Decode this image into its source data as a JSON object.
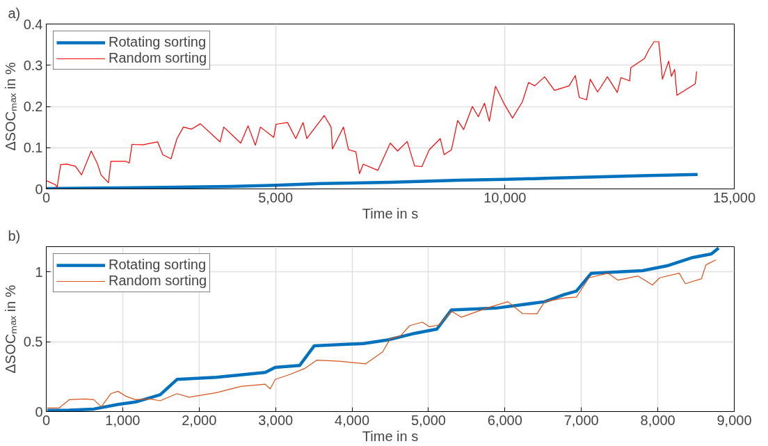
{
  "chart_data": [
    {
      "type": "line",
      "title": "a)",
      "xlabel": "Time in s",
      "ylabel": "ΔSOCₘₐₓ in %",
      "xlim": [
        0,
        15000
      ],
      "ylim": [
        0,
        0.4
      ],
      "xticks": [
        0,
        {
          "value": 5000,
          "label": "5,000"
        },
        {
          "value": 10000,
          "label": "10,000"
        },
        {
          "value": 15000,
          "label": "15,000"
        }
      ],
      "yticks": [
        0,
        0.1,
        0.2,
        0.3,
        0.4
      ],
      "grid": true,
      "legend": "top left",
      "series": [
        {
          "name": "Rotating sorting",
          "color": "#0072bd",
          "x": [
            0,
            2000,
            4000,
            5000,
            6000,
            7500,
            9000,
            10000,
            11000,
            12000,
            13000,
            14200
          ],
          "values": [
            0.001,
            0.003,
            0.006,
            0.009,
            0.013,
            0.016,
            0.021,
            0.023,
            0.026,
            0.029,
            0.032,
            0.035
          ]
        },
        {
          "name": "Random sorting",
          "color": "#ff0000",
          "x": [
            0,
            200,
            235,
            315,
            450,
            635,
            770,
            980,
            1115,
            1195,
            1355,
            1410,
            1730,
            1810,
            1870,
            2105,
            2430,
            2540,
            2720,
            2850,
            2990,
            3170,
            3360,
            3790,
            3870,
            4240,
            4400,
            4560,
            4670,
            4960,
            5010,
            5260,
            5440,
            5600,
            5680,
            6060,
            6210,
            6240,
            6480,
            6590,
            6750,
            6830,
            6910,
            7230,
            7500,
            7660,
            7870,
            8030,
            8190,
            8350,
            8590,
            8675,
            8835,
            8970,
            9100,
            9290,
            9420,
            9555,
            9660,
            9795,
            9980,
            10165,
            10380,
            10515,
            10650,
            10865,
            11080,
            11400,
            11535,
            11620,
            11780,
            11860,
            12020,
            12235,
            12450,
            12530,
            12720,
            12745,
            13040,
            13140,
            13250,
            13355,
            13435,
            13570,
            13630,
            13700,
            13750,
            13990,
            14150,
            14180
          ],
          "values": [
            0.02,
            0.01,
            0.003,
            0.059,
            0.06,
            0.055,
            0.034,
            0.092,
            0.061,
            0.034,
            0.015,
            0.067,
            0.067,
            0.063,
            0.108,
            0.107,
            0.114,
            0.083,
            0.073,
            0.122,
            0.15,
            0.145,
            0.158,
            0.114,
            0.15,
            0.111,
            0.153,
            0.106,
            0.15,
            0.125,
            0.157,
            0.161,
            0.122,
            0.161,
            0.122,
            0.178,
            0.15,
            0.097,
            0.15,
            0.095,
            0.09,
            0.037,
            0.06,
            0.045,
            0.111,
            0.092,
            0.115,
            0.056,
            0.054,
            0.095,
            0.122,
            0.083,
            0.095,
            0.166,
            0.144,
            0.2,
            0.175,
            0.208,
            0.164,
            0.249,
            0.207,
            0.172,
            0.211,
            0.258,
            0.25,
            0.272,
            0.239,
            0.25,
            0.275,
            0.222,
            0.216,
            0.266,
            0.235,
            0.272,
            0.234,
            0.27,
            0.262,
            0.294,
            0.316,
            0.338,
            0.357,
            0.357,
            0.266,
            0.31,
            0.273,
            0.29,
            0.227,
            0.244,
            0.255,
            0.285
          ]
        }
      ]
    },
    {
      "type": "line",
      "title": "b)",
      "xlabel": "Time in s",
      "ylabel": "ΔSOCₘₐₓ in %",
      "xlim": [
        0,
        9000
      ],
      "ylim": [
        0,
        1.18
      ],
      "xticks": [
        0,
        {
          "value": 1000,
          "label": "1,000"
        },
        {
          "value": 2000,
          "label": "2,000"
        },
        {
          "value": 3000,
          "label": "3,000"
        },
        {
          "value": 4000,
          "label": "4,000"
        },
        {
          "value": 5000,
          "label": "5,000"
        },
        {
          "value": 6000,
          "label": "6,000"
        },
        {
          "value": 7000,
          "label": "7,000"
        },
        {
          "value": 8000,
          "label": "8,000"
        },
        {
          "value": 9000,
          "label": "9,000"
        }
      ],
      "yticks": [
        0,
        0.5,
        1
      ],
      "grid": true,
      "legend": "top left",
      "series": [
        {
          "name": "Rotating sorting",
          "color": "#0072bd",
          "x": [
            13,
            300,
            620,
            940,
            1165,
            1490,
            1710,
            2225,
            2865,
            2995,
            3315,
            3505,
            4150,
            4470,
            4790,
            5110,
            5300,
            5880,
            6520,
            6775,
            6935,
            7130,
            7800,
            8120,
            8440,
            8700,
            8795
          ],
          "values": [
            0.009,
            0.01,
            0.018,
            0.051,
            0.068,
            0.12,
            0.23,
            0.245,
            0.28,
            0.316,
            0.33,
            0.47,
            0.487,
            0.513,
            0.556,
            0.59,
            0.727,
            0.74,
            0.786,
            0.837,
            0.862,
            0.99,
            1.008,
            1.043,
            1.1,
            1.128,
            1.17
          ]
        },
        {
          "name": "Random sorting",
          "color": "#d95319",
          "x": [
            13,
            170,
            300,
            510,
            620,
            720,
            845,
            940,
            1040,
            1165,
            1360,
            1490,
            1710,
            1870,
            2225,
            2545,
            2865,
            2930,
            2995,
            3185,
            3380,
            3540,
            3830,
            4180,
            4400,
            4500,
            4630,
            4755,
            4920,
            5010,
            5140,
            5300,
            5430,
            5780,
            6040,
            6230,
            6420,
            6520,
            6775,
            6935,
            7100,
            7350,
            7480,
            7740,
            7930,
            8025,
            8280,
            8360,
            8570,
            8630,
            8760
          ],
          "values": [
            0.026,
            0.026,
            0.085,
            0.09,
            0.085,
            0.034,
            0.128,
            0.145,
            0.11,
            0.085,
            0.09,
            0.077,
            0.128,
            0.103,
            0.135,
            0.18,
            0.196,
            0.162,
            0.23,
            0.265,
            0.308,
            0.368,
            0.36,
            0.342,
            0.427,
            0.521,
            0.54,
            0.615,
            0.64,
            0.607,
            0.62,
            0.718,
            0.675,
            0.744,
            0.786,
            0.701,
            0.7,
            0.786,
            0.812,
            0.82,
            0.957,
            0.99,
            0.94,
            0.97,
            0.906,
            0.957,
            0.99,
            0.915,
            0.95,
            1.05,
            1.085
          ]
        }
      ]
    }
  ]
}
